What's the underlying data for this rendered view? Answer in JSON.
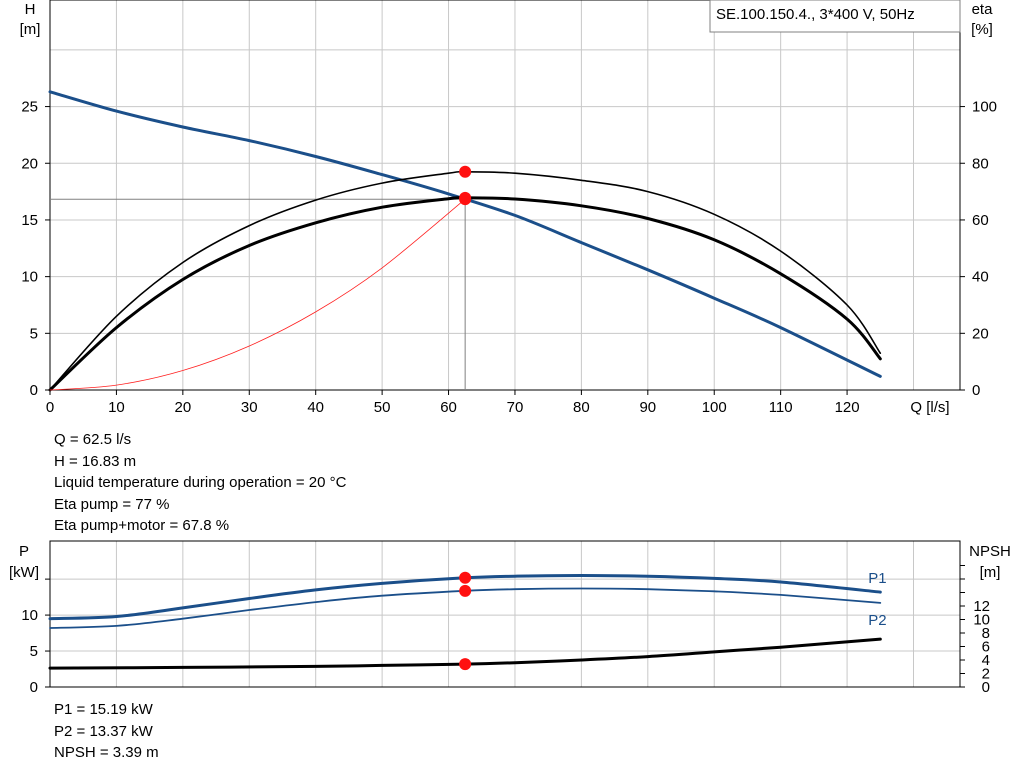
{
  "chart_data": [
    {
      "type": "line",
      "title": "SE.100.150.4., 3*400 V, 50Hz",
      "xlabel": "Q [l/s]",
      "ylabel_left": [
        "H",
        "[m]"
      ],
      "ylabel_right": [
        "eta",
        "[%]"
      ],
      "xlim": [
        0,
        137
      ],
      "ylim_left": [
        0,
        34.4
      ],
      "ylim_right": [
        0,
        137.6
      ],
      "x_ticks": [
        0,
        10,
        20,
        30,
        40,
        50,
        60,
        70,
        80,
        90,
        100,
        110,
        120
      ],
      "y_ticks_left": [
        0,
        5,
        10,
        15,
        20,
        25
      ],
      "y_ticks_right": [
        0,
        20,
        40,
        60,
        80,
        100
      ],
      "grid": true,
      "series": [
        {
          "axis": "left",
          "color": "#1b4f8a",
          "x": [
            0,
            10,
            20,
            30,
            40,
            50,
            60,
            70,
            80,
            90,
            100,
            110,
            125
          ],
          "values": [
            26.3,
            24.6,
            23.2,
            22.0,
            20.6,
            19.0,
            17.3,
            15.4,
            13.0,
            10.6,
            8.1,
            5.5,
            1.2
          ]
        },
        {
          "axis": "right",
          "color": "#000000",
          "x": [
            0,
            10,
            20,
            30,
            40,
            50,
            60,
            62.5,
            70,
            80,
            90,
            100,
            110,
            120,
            125
          ],
          "values": [
            0,
            26,
            45,
            58,
            67,
            73,
            76.5,
            77,
            76.5,
            74,
            70,
            62,
            49,
            30,
            13
          ]
        },
        {
          "axis": "right",
          "color": "#000000",
          "x": [
            0,
            10,
            20,
            30,
            40,
            50,
            60,
            62.5,
            70,
            80,
            90,
            100,
            110,
            120,
            125
          ],
          "values": [
            0,
            22,
            39,
            51,
            59,
            64.5,
            67.5,
            67.8,
            67.4,
            65,
            60.5,
            53,
            41,
            25,
            11
          ]
        },
        {
          "axis": "left",
          "color": "#ff2020",
          "x": [
            0,
            10,
            20,
            30,
            40,
            50,
            62.5
          ],
          "values": [
            0,
            0.43,
            1.72,
            3.88,
            6.89,
            10.77,
            16.83
          ]
        }
      ],
      "operating_point": {
        "x": 62.5,
        "y": 16.83
      },
      "markers": [
        {
          "axis": "right",
          "x": 62.5,
          "y": 77
        },
        {
          "axis": "right",
          "x": 62.5,
          "y": 67.8
        }
      ]
    },
    {
      "type": "line",
      "xlim": [
        0,
        137
      ],
      "ylabel_left": [
        "P",
        "[kW]"
      ],
      "ylabel_right": [
        "NPSH",
        "[m]"
      ],
      "ylim_left": [
        0,
        19
      ],
      "ylim_right": [
        0,
        19
      ],
      "y_ticks_left": [
        0,
        5,
        10
      ],
      "y_ticks_right": [
        0,
        2,
        4,
        6,
        8,
        10,
        12
      ],
      "grid": true,
      "series": [
        {
          "name": "P1",
          "axis": "left",
          "color": "#1b4f8a",
          "x": [
            0,
            10,
            20,
            30,
            40,
            50,
            62.5,
            70,
            80,
            90,
            100,
            110,
            125
          ],
          "values": [
            9.5,
            9.8,
            11.0,
            12.3,
            13.5,
            14.4,
            15.19,
            15.4,
            15.5,
            15.4,
            15.1,
            14.6,
            13.2
          ]
        },
        {
          "name": "P2",
          "axis": "left",
          "color": "#1b4f8a",
          "x": [
            0,
            10,
            20,
            30,
            40,
            50,
            62.5,
            70,
            80,
            90,
            100,
            110,
            125
          ],
          "values": [
            8.2,
            8.5,
            9.5,
            10.7,
            11.8,
            12.7,
            13.37,
            13.6,
            13.7,
            13.6,
            13.3,
            12.8,
            11.7
          ]
        },
        {
          "axis": "right",
          "color": "#000000",
          "x": [
            0,
            20,
            40,
            50,
            62.5,
            70,
            80,
            90,
            100,
            110,
            125
          ],
          "values": [
            2.8,
            2.9,
            3.05,
            3.2,
            3.39,
            3.6,
            4.0,
            4.5,
            5.2,
            5.9,
            7.1
          ]
        }
      ],
      "markers": [
        {
          "axis": "left",
          "x": 62.5,
          "y": 15.19
        },
        {
          "axis": "left",
          "x": 62.5,
          "y": 13.37
        },
        {
          "axis": "right",
          "x": 62.5,
          "y": 3.39
        }
      ]
    }
  ],
  "results_main": [
    "Q = 62.5 l/s",
    "H = 16.83 m",
    "Liquid temperature during operation = 20 °C",
    "Eta pump = 77 %",
    "Eta pump+motor = 67.8 %"
  ],
  "results_power": [
    "P1 = 15.19 kW",
    "P2 = 13.37 kW",
    "NPSH = 3.39 m"
  ]
}
